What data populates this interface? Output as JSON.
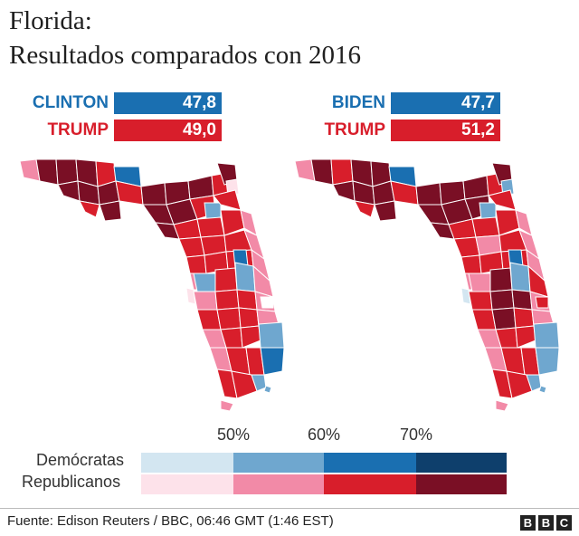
{
  "title": {
    "line1": "Florida:",
    "line2": "Resultados comparados con 2016"
  },
  "left": {
    "dem": {
      "name": "CLINTON",
      "pct": "47,8"
    },
    "rep": {
      "name": "TRUMP",
      "pct": "49,0"
    }
  },
  "right": {
    "dem": {
      "name": "BIDEN",
      "pct": "47,7"
    },
    "rep": {
      "name": "TRUMP",
      "pct": "51,2"
    }
  },
  "legend": {
    "thresholds": [
      "50%",
      "60%",
      "70%"
    ],
    "dem_label": "Demócratas",
    "rep_label": "Republicanos",
    "dem_colors": [
      "#d3e6f1",
      "#6fa7cf",
      "#1a6fb1",
      "#0e3f6c"
    ],
    "rep_colors": [
      "#fde2ea",
      "#f28aa7",
      "#d81e2b",
      "#7a0f25"
    ]
  },
  "colors": {
    "dem": "#1a6fb1",
    "rep": "#d81e2b"
  },
  "footer": {
    "source": "Fuente: Edison Reuters / BBC, 06:46 GMT (1:46 EST)",
    "logo": [
      "B",
      "B",
      "C"
    ]
  }
}
